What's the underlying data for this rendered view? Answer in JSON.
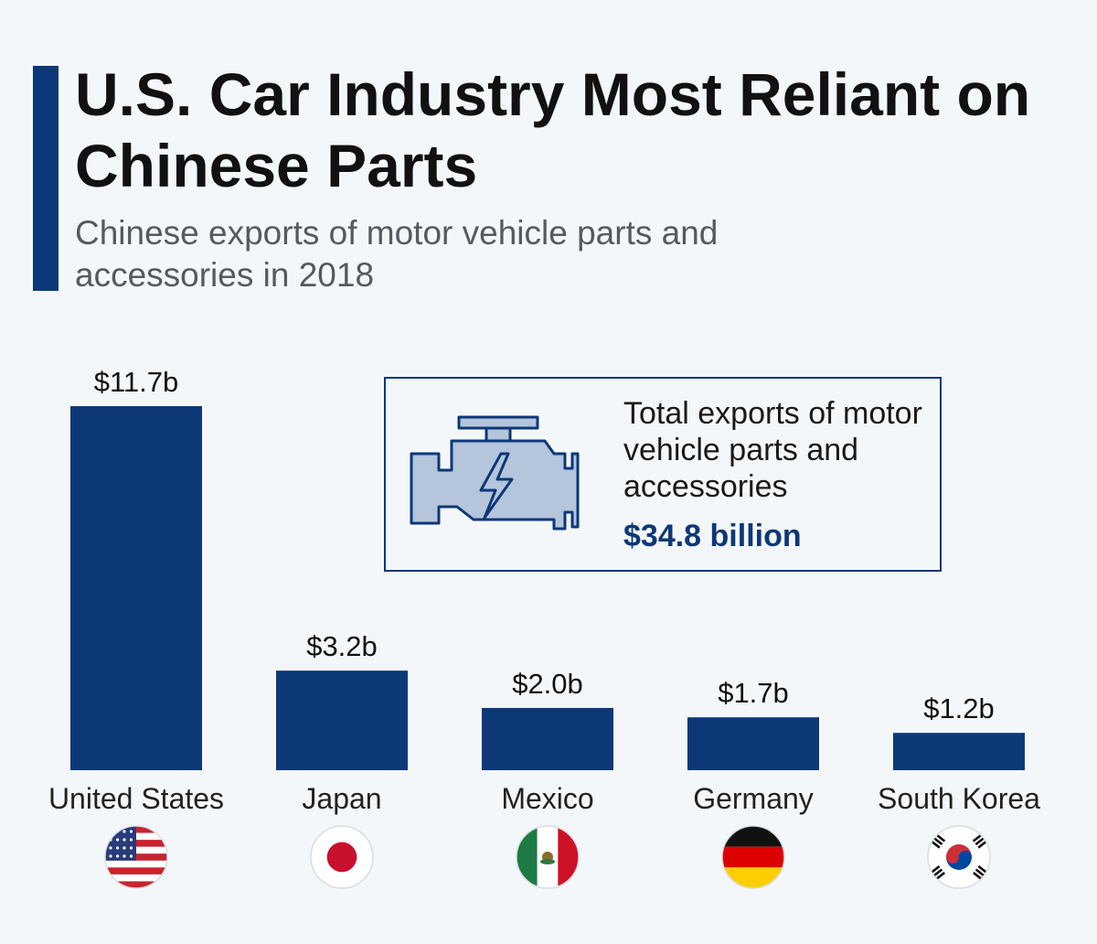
{
  "header": {
    "title": "U.S. Car Industry Most Reliant on Chinese Parts",
    "subtitle": "Chinese exports of motor vehicle parts and accessories in 2018"
  },
  "infobox": {
    "text": "Total exports of motor vehicle parts and accessories",
    "value": "$34.8 billion",
    "icon": "engine-icon"
  },
  "colors": {
    "bar": "#0c3878",
    "accent": "#0c3878",
    "background": "#f4f7fa"
  },
  "chart_data": {
    "type": "bar",
    "categories": [
      "United States",
      "Japan",
      "Mexico",
      "Germany",
      "South Korea"
    ],
    "values": [
      11.7,
      3.2,
      2.0,
      1.7,
      1.2
    ],
    "value_labels": [
      "$11.7b",
      "$3.2b",
      "$2.0b",
      "$1.7b",
      "$1.2b"
    ],
    "flags": [
      "us-flag-icon",
      "japan-flag-icon",
      "mexico-flag-icon",
      "germany-flag-icon",
      "south-korea-flag-icon"
    ],
    "title": "U.S. Car Industry Most Reliant on Chinese Parts",
    "subtitle": "Chinese exports of motor vehicle parts and accessories in 2018",
    "xlabel": "",
    "ylabel": "",
    "ylim": [
      0,
      11.7
    ],
    "grid": false,
    "legend": "none"
  }
}
